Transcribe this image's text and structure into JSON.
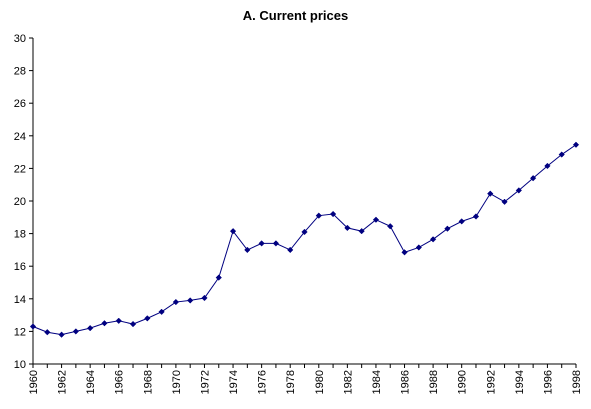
{
  "chart_data": {
    "type": "line",
    "title": "A. Current prices",
    "xlabel": "",
    "ylabel": "",
    "ylim": [
      10,
      30
    ],
    "yticks": [
      10,
      12,
      14,
      16,
      18,
      20,
      22,
      24,
      26,
      28,
      30
    ],
    "xlim": [
      1960,
      1998
    ],
    "xticks": [
      1960,
      1962,
      1964,
      1966,
      1968,
      1970,
      1972,
      1974,
      1976,
      1978,
      1980,
      1982,
      1984,
      1986,
      1988,
      1990,
      1992,
      1994,
      1996,
      1998
    ],
    "grid": false,
    "legend": "none",
    "series": [
      {
        "color": "#000080",
        "marker": "diamond",
        "x": [
          1960,
          1961,
          1962,
          1963,
          1964,
          1965,
          1966,
          1967,
          1968,
          1969,
          1970,
          1971,
          1972,
          1973,
          1974,
          1975,
          1976,
          1977,
          1978,
          1979,
          1980,
          1981,
          1982,
          1983,
          1984,
          1985,
          1986,
          1987,
          1988,
          1989,
          1990,
          1991,
          1992,
          1993,
          1994,
          1995,
          1996,
          1997,
          1998
        ],
        "values": [
          12.3,
          11.95,
          11.8,
          12.0,
          12.2,
          12.5,
          12.65,
          12.45,
          12.8,
          13.2,
          13.8,
          13.9,
          14.05,
          15.3,
          18.15,
          17.0,
          17.4,
          17.4,
          17.0,
          18.1,
          19.1,
          19.2,
          18.35,
          18.15,
          18.85,
          18.45,
          16.85,
          17.15,
          17.65,
          18.3,
          18.75,
          19.05,
          20.45,
          19.95,
          20.65,
          21.4,
          22.15,
          22.85,
          23.45
        ]
      }
    ]
  }
}
